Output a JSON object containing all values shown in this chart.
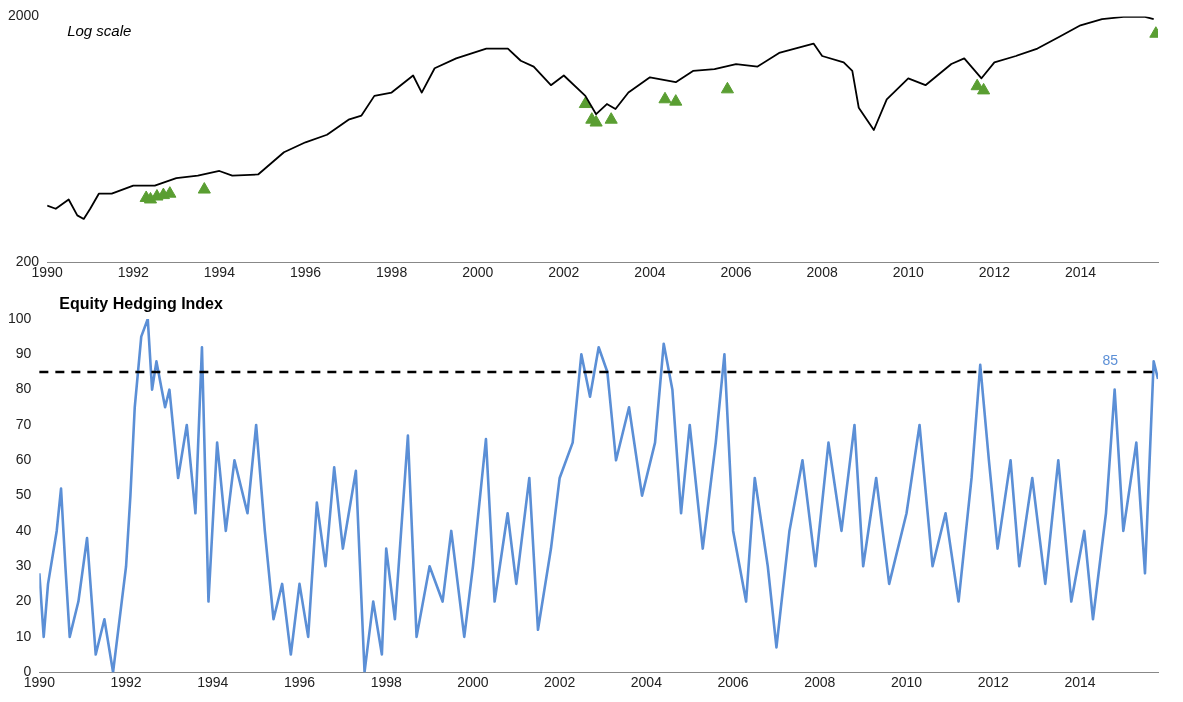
{
  "chart_data": [
    {
      "type": "line",
      "subtitle": "Log scale",
      "log": "y",
      "grid": false,
      "legend": false,
      "xlim": [
        1990,
        2015.8
      ],
      "xticks": [
        1990,
        1992,
        1994,
        1996,
        1998,
        2000,
        2002,
        2004,
        2006,
        2008,
        2010,
        2012,
        2014
      ],
      "ylim": [
        200,
        2000
      ],
      "yticks": [
        200,
        2000
      ],
      "series": [
        {
          "type": "line",
          "color": "#000000",
          "x": [
            1990.0,
            1990.2,
            1990.5,
            1990.7,
            1990.85,
            1991.0,
            1991.2,
            1991.5,
            1992.0,
            1992.5,
            1993.0,
            1993.5,
            1994.0,
            1994.3,
            1994.9,
            1995.5,
            1996.0,
            1996.5,
            1997.0,
            1997.3,
            1997.6,
            1998.0,
            1998.5,
            1998.7,
            1999.0,
            1999.5,
            2000.2,
            2000.7,
            2001.0,
            2001.3,
            2001.7,
            2002.0,
            2002.5,
            2002.75,
            2003.0,
            2003.2,
            2003.5,
            2004.0,
            2004.6,
            2005.0,
            2005.5,
            2006.0,
            2006.5,
            2007.0,
            2007.8,
            2008.0,
            2008.5,
            2008.7,
            2008.85,
            2009.2,
            2009.5,
            2010.0,
            2010.4,
            2011.0,
            2011.3,
            2011.7,
            2012.0,
            2012.5,
            2013.0,
            2013.5,
            2014.0,
            2014.5,
            2015.0,
            2015.5,
            2015.7
          ],
          "values": [
            340,
            330,
            360,
            310,
            300,
            330,
            380,
            380,
            410,
            410,
            440,
            450,
            470,
            450,
            455,
            560,
            615,
            660,
            760,
            790,
            950,
            980,
            1150,
            980,
            1230,
            1350,
            1480,
            1480,
            1320,
            1250,
            1050,
            1150,
            950,
            800,
            880,
            840,
            980,
            1130,
            1080,
            1200,
            1220,
            1280,
            1250,
            1420,
            1550,
            1380,
            1300,
            1200,
            850,
            690,
            920,
            1120,
            1050,
            1280,
            1350,
            1120,
            1300,
            1380,
            1480,
            1650,
            1840,
            1950,
            1990,
            1990,
            1950
          ]
        },
        {
          "type": "scatter",
          "color": "#5a9e32",
          "marker": "triangle",
          "x": [
            1992.3,
            1992.4,
            1992.55,
            1992.7,
            1992.85,
            1993.65,
            2002.5,
            2002.65,
            2002.75,
            2003.1,
            2004.35,
            2004.6,
            2005.8,
            2011.6,
            2011.75,
            2015.75
          ],
          "values": [
            365,
            360,
            370,
            375,
            380,
            395,
            880,
            760,
            740,
            760,
            920,
            900,
            1010,
            1040,
            1000,
            1700
          ]
        }
      ]
    },
    {
      "type": "line",
      "title": "Equity Hedging Index",
      "grid": false,
      "legend": false,
      "xlim": [
        1990,
        2015.8
      ],
      "xticks": [
        1990,
        1992,
        1994,
        1996,
        1998,
        2000,
        2002,
        2004,
        2006,
        2008,
        2010,
        2012,
        2014
      ],
      "ylim": [
        0,
        100
      ],
      "yticks": [
        0,
        10,
        20,
        30,
        40,
        50,
        60,
        70,
        80,
        90,
        100
      ],
      "ref_lines": [
        {
          "axis": "y",
          "value": 85,
          "label": "85",
          "color": "#000000",
          "line_style": "dashed"
        }
      ],
      "series": [
        {
          "type": "line",
          "color": "#5b8fd6",
          "x": [
            1990.0,
            1990.1,
            1990.2,
            1990.4,
            1990.5,
            1990.6,
            1990.7,
            1990.9,
            1991.1,
            1991.3,
            1991.5,
            1991.7,
            1991.9,
            1992.0,
            1992.1,
            1992.2,
            1992.35,
            1992.5,
            1992.6,
            1992.7,
            1992.9,
            1993.0,
            1993.2,
            1993.4,
            1993.6,
            1993.75,
            1993.9,
            1994.1,
            1994.3,
            1994.5,
            1994.8,
            1995.0,
            1995.2,
            1995.4,
            1995.6,
            1995.8,
            1996.0,
            1996.2,
            1996.4,
            1996.6,
            1996.8,
            1997.0,
            1997.3,
            1997.5,
            1997.7,
            1997.9,
            1998.0,
            1998.2,
            1998.5,
            1998.7,
            1999.0,
            1999.3,
            1999.5,
            1999.8,
            2000.0,
            2000.3,
            2000.5,
            2000.8,
            2001.0,
            2001.3,
            2001.5,
            2001.8,
            2002.0,
            2002.3,
            2002.5,
            2002.7,
            2002.9,
            2003.1,
            2003.3,
            2003.6,
            2003.9,
            2004.2,
            2004.4,
            2004.6,
            2004.8,
            2005.0,
            2005.3,
            2005.6,
            2005.8,
            2006.0,
            2006.3,
            2006.5,
            2006.8,
            2007.0,
            2007.3,
            2007.6,
            2007.9,
            2008.2,
            2008.5,
            2008.8,
            2009.0,
            2009.3,
            2009.6,
            2010.0,
            2010.3,
            2010.6,
            2010.9,
            2011.2,
            2011.5,
            2011.7,
            2011.9,
            2012.1,
            2012.4,
            2012.6,
            2012.9,
            2013.2,
            2013.5,
            2013.8,
            2014.1,
            2014.3,
            2014.6,
            2014.8,
            2015.0,
            2015.3,
            2015.5,
            2015.7,
            2015.8
          ],
          "values": [
            28,
            10,
            25,
            40,
            52,
            30,
            10,
            20,
            38,
            5,
            15,
            0,
            20,
            30,
            50,
            75,
            95,
            100,
            80,
            88,
            75,
            80,
            55,
            70,
            45,
            92,
            20,
            65,
            40,
            60,
            45,
            70,
            40,
            15,
            25,
            5,
            25,
            10,
            48,
            30,
            58,
            35,
            57,
            0,
            20,
            5,
            35,
            15,
            67,
            10,
            30,
            20,
            40,
            10,
            30,
            66,
            20,
            45,
            25,
            55,
            12,
            35,
            55,
            65,
            90,
            78,
            92,
            85,
            60,
            75,
            50,
            65,
            93,
            80,
            45,
            70,
            35,
            65,
            90,
            40,
            20,
            55,
            30,
            7,
            40,
            60,
            30,
            65,
            40,
            70,
            30,
            55,
            25,
            45,
            70,
            30,
            45,
            20,
            55,
            87,
            60,
            35,
            60,
            30,
            55,
            25,
            60,
            20,
            40,
            15,
            45,
            80,
            40,
            65,
            28,
            88,
            83
          ]
        }
      ]
    }
  ]
}
